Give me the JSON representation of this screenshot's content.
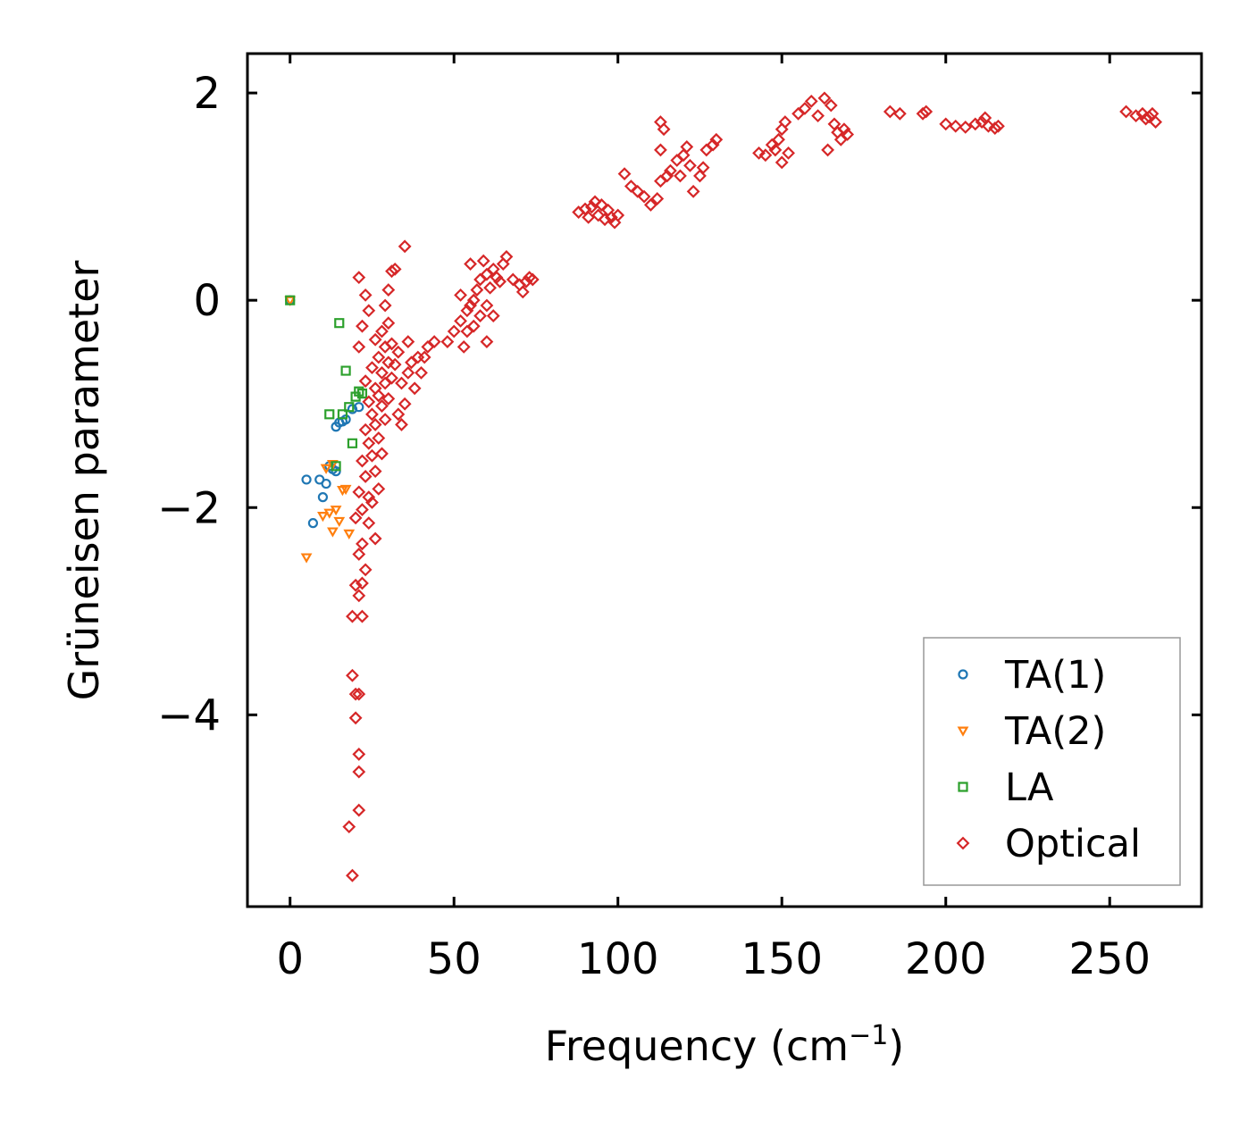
{
  "chart_data": {
    "type": "scatter",
    "title": "",
    "xlabel": "Frequency (cm",
    "xlabel_sup": "−1",
    "xlabel_close": ")",
    "ylabel": "Grüneisen parameter",
    "xlim": [
      -13,
      278
    ],
    "ylim": [
      -5.85,
      2.38
    ],
    "x_ticks": [
      0,
      50,
      100,
      150,
      200,
      250
    ],
    "x_tick_labels": [
      "0",
      "50",
      "100",
      "150",
      "200",
      "250"
    ],
    "y_ticks": [
      -4,
      -2,
      0,
      2
    ],
    "y_tick_labels": [
      "−4",
      "−2",
      "0",
      "2"
    ],
    "grid": false,
    "legend_position": "bottom-right",
    "series": [
      {
        "name": "TA(1)",
        "marker": "circle",
        "color": "#1f77b4",
        "points": [
          [
            0,
            0
          ],
          [
            5,
            -1.73
          ],
          [
            7,
            -2.15
          ],
          [
            9,
            -1.73
          ],
          [
            10,
            -1.9
          ],
          [
            11,
            -1.77
          ],
          [
            12,
            -1.6
          ],
          [
            13,
            -1.63
          ],
          [
            14,
            -1.65
          ],
          [
            14,
            -1.22
          ],
          [
            15,
            -1.18
          ],
          [
            16,
            -1.17
          ],
          [
            17,
            -1.15
          ],
          [
            19,
            -1.05
          ],
          [
            21,
            -1.03
          ]
        ]
      },
      {
        "name": "TA(2)",
        "marker": "triangle-down",
        "color": "#ff7f0e",
        "points": [
          [
            0,
            0
          ],
          [
            5,
            -2.48
          ],
          [
            10,
            -2.08
          ],
          [
            12,
            -2.05
          ],
          [
            13,
            -2.23
          ],
          [
            14,
            -2.02
          ],
          [
            15,
            -2.13
          ],
          [
            16,
            -1.83
          ],
          [
            17,
            -1.82
          ],
          [
            18,
            -2.25
          ],
          [
            11,
            -1.62
          ],
          [
            13,
            -1.58
          ]
        ]
      },
      {
        "name": "LA",
        "marker": "square",
        "color": "#2ca02c",
        "points": [
          [
            0,
            0
          ],
          [
            15,
            -0.22
          ],
          [
            16,
            -1.1
          ],
          [
            17,
            -0.68
          ],
          [
            18,
            -1.03
          ],
          [
            19,
            -1.38
          ],
          [
            20,
            -0.93
          ],
          [
            21,
            -0.88
          ],
          [
            22,
            -0.9
          ],
          [
            12,
            -1.1
          ],
          [
            14,
            -1.6
          ]
        ]
      },
      {
        "name": "Optical",
        "marker": "diamond",
        "color": "#d62728",
        "points": [
          [
            19,
            -5.55
          ],
          [
            18,
            -5.08
          ],
          [
            21,
            -4.92
          ],
          [
            21,
            -4.55
          ],
          [
            21,
            -4.38
          ],
          [
            20,
            -4.03
          ],
          [
            21,
            -3.8
          ],
          [
            20,
            -3.8
          ],
          [
            19,
            -3.62
          ],
          [
            19,
            -3.05
          ],
          [
            22,
            -3.05
          ],
          [
            21,
            -2.85
          ],
          [
            20,
            -2.75
          ],
          [
            22,
            -2.73
          ],
          [
            23,
            -2.6
          ],
          [
            21,
            -2.45
          ],
          [
            22,
            -2.35
          ],
          [
            20,
            -2.1
          ],
          [
            24,
            -2.15
          ],
          [
            26,
            -2.3
          ],
          [
            22,
            -2.02
          ],
          [
            25,
            -1.95
          ],
          [
            21,
            -1.85
          ],
          [
            24,
            -1.9
          ],
          [
            27,
            -1.82
          ],
          [
            23,
            -1.7
          ],
          [
            26,
            -1.65
          ],
          [
            22,
            -1.55
          ],
          [
            25,
            -1.5
          ],
          [
            28,
            -1.48
          ],
          [
            24,
            -1.38
          ],
          [
            27,
            -1.33
          ],
          [
            23,
            -1.25
          ],
          [
            26,
            -1.2
          ],
          [
            29,
            -1.15
          ],
          [
            25,
            -1.1
          ],
          [
            28,
            -1.02
          ],
          [
            24,
            -0.98
          ],
          [
            27,
            -0.92
          ],
          [
            30,
            -0.95
          ],
          [
            26,
            -0.85
          ],
          [
            29,
            -0.8
          ],
          [
            23,
            -0.78
          ],
          [
            28,
            -0.7
          ],
          [
            31,
            -0.75
          ],
          [
            25,
            -0.65
          ],
          [
            30,
            -0.6
          ],
          [
            27,
            -0.55
          ],
          [
            32,
            -0.62
          ],
          [
            29,
            -0.45
          ],
          [
            26,
            -0.38
          ],
          [
            31,
            -0.42
          ],
          [
            28,
            -0.3
          ],
          [
            33,
            -0.5
          ],
          [
            30,
            -0.22
          ],
          [
            22,
            -0.25
          ],
          [
            21,
            -0.45
          ],
          [
            24,
            -0.1
          ],
          [
            29,
            -0.05
          ],
          [
            23,
            0.05
          ],
          [
            30,
            0.1
          ],
          [
            21,
            0.22
          ],
          [
            31,
            0.28
          ],
          [
            32,
            0.3
          ],
          [
            35,
            0.52
          ],
          [
            34,
            -0.8
          ],
          [
            36,
            -0.7
          ],
          [
            38,
            -0.85
          ],
          [
            35,
            -1.0
          ],
          [
            37,
            -0.6
          ],
          [
            39,
            -0.55
          ],
          [
            40,
            -0.7
          ],
          [
            33,
            -1.1
          ],
          [
            34,
            -1.2
          ],
          [
            36,
            -0.4
          ],
          [
            42,
            -0.45
          ],
          [
            44,
            -0.4
          ],
          [
            41,
            -0.55
          ],
          [
            48,
            -0.4
          ],
          [
            50,
            -0.3
          ],
          [
            52,
            -0.2
          ],
          [
            53,
            -0.45
          ],
          [
            54,
            -0.1
          ],
          [
            55,
            -0.05
          ],
          [
            56,
            0.0
          ],
          [
            52,
            0.05
          ],
          [
            57,
            0.1
          ],
          [
            58,
            0.2
          ],
          [
            60,
            0.25
          ],
          [
            55,
            0.35
          ],
          [
            59,
            0.38
          ],
          [
            62,
            0.3
          ],
          [
            63,
            0.22
          ],
          [
            65,
            0.35
          ],
          [
            66,
            0.42
          ],
          [
            61,
            0.12
          ],
          [
            64,
            0.18
          ],
          [
            60,
            -0.05
          ],
          [
            58,
            -0.15
          ],
          [
            56,
            -0.25
          ],
          [
            54,
            -0.3
          ],
          [
            60,
            -0.4
          ],
          [
            62,
            -0.15
          ],
          [
            68,
            0.2
          ],
          [
            70,
            0.15
          ],
          [
            72,
            0.18
          ],
          [
            73,
            0.22
          ],
          [
            71,
            0.08
          ],
          [
            74,
            0.2
          ],
          [
            88,
            0.85
          ],
          [
            90,
            0.88
          ],
          [
            92,
            0.9
          ],
          [
            94,
            0.82
          ],
          [
            96,
            0.78
          ],
          [
            98,
            0.8
          ],
          [
            93,
            0.95
          ],
          [
            95,
            0.92
          ],
          [
            97,
            0.87
          ],
          [
            100,
            0.82
          ],
          [
            99,
            0.75
          ],
          [
            91,
            0.8
          ],
          [
            102,
            1.22
          ],
          [
            104,
            1.1
          ],
          [
            106,
            1.05
          ],
          [
            108,
            1.0
          ],
          [
            110,
            0.92
          ],
          [
            112,
            0.98
          ],
          [
            113,
            1.15
          ],
          [
            115,
            1.2
          ],
          [
            113,
            1.45
          ],
          [
            114,
            1.65
          ],
          [
            113,
            1.72
          ],
          [
            116,
            1.25
          ],
          [
            118,
            1.35
          ],
          [
            120,
            1.4
          ],
          [
            122,
            1.3
          ],
          [
            123,
            1.05
          ],
          [
            125,
            1.2
          ],
          [
            127,
            1.45
          ],
          [
            129,
            1.5
          ],
          [
            130,
            1.55
          ],
          [
            126,
            1.28
          ],
          [
            121,
            1.48
          ],
          [
            119,
            1.2
          ],
          [
            143,
            1.42
          ],
          [
            145,
            1.4
          ],
          [
            147,
            1.5
          ],
          [
            149,
            1.55
          ],
          [
            150,
            1.65
          ],
          [
            151,
            1.72
          ],
          [
            148,
            1.45
          ],
          [
            150,
            1.33
          ],
          [
            152,
            1.42
          ],
          [
            155,
            1.8
          ],
          [
            157,
            1.85
          ],
          [
            159,
            1.92
          ],
          [
            161,
            1.78
          ],
          [
            163,
            1.95
          ],
          [
            165,
            1.88
          ],
          [
            166,
            1.7
          ],
          [
            167,
            1.62
          ],
          [
            168,
            1.55
          ],
          [
            169,
            1.65
          ],
          [
            170,
            1.6
          ],
          [
            164,
            1.45
          ],
          [
            183,
            1.82
          ],
          [
            186,
            1.8
          ],
          [
            193,
            1.8
          ],
          [
            194,
            1.82
          ],
          [
            200,
            1.7
          ],
          [
            203,
            1.68
          ],
          [
            206,
            1.67
          ],
          [
            209,
            1.7
          ],
          [
            211,
            1.72
          ],
          [
            212,
            1.76
          ],
          [
            213,
            1.68
          ],
          [
            215,
            1.66
          ],
          [
            216,
            1.68
          ],
          [
            255,
            1.82
          ],
          [
            258,
            1.78
          ],
          [
            260,
            1.8
          ],
          [
            261,
            1.75
          ],
          [
            262,
            1.77
          ],
          [
            263,
            1.8
          ],
          [
            264,
            1.72
          ]
        ]
      }
    ]
  }
}
